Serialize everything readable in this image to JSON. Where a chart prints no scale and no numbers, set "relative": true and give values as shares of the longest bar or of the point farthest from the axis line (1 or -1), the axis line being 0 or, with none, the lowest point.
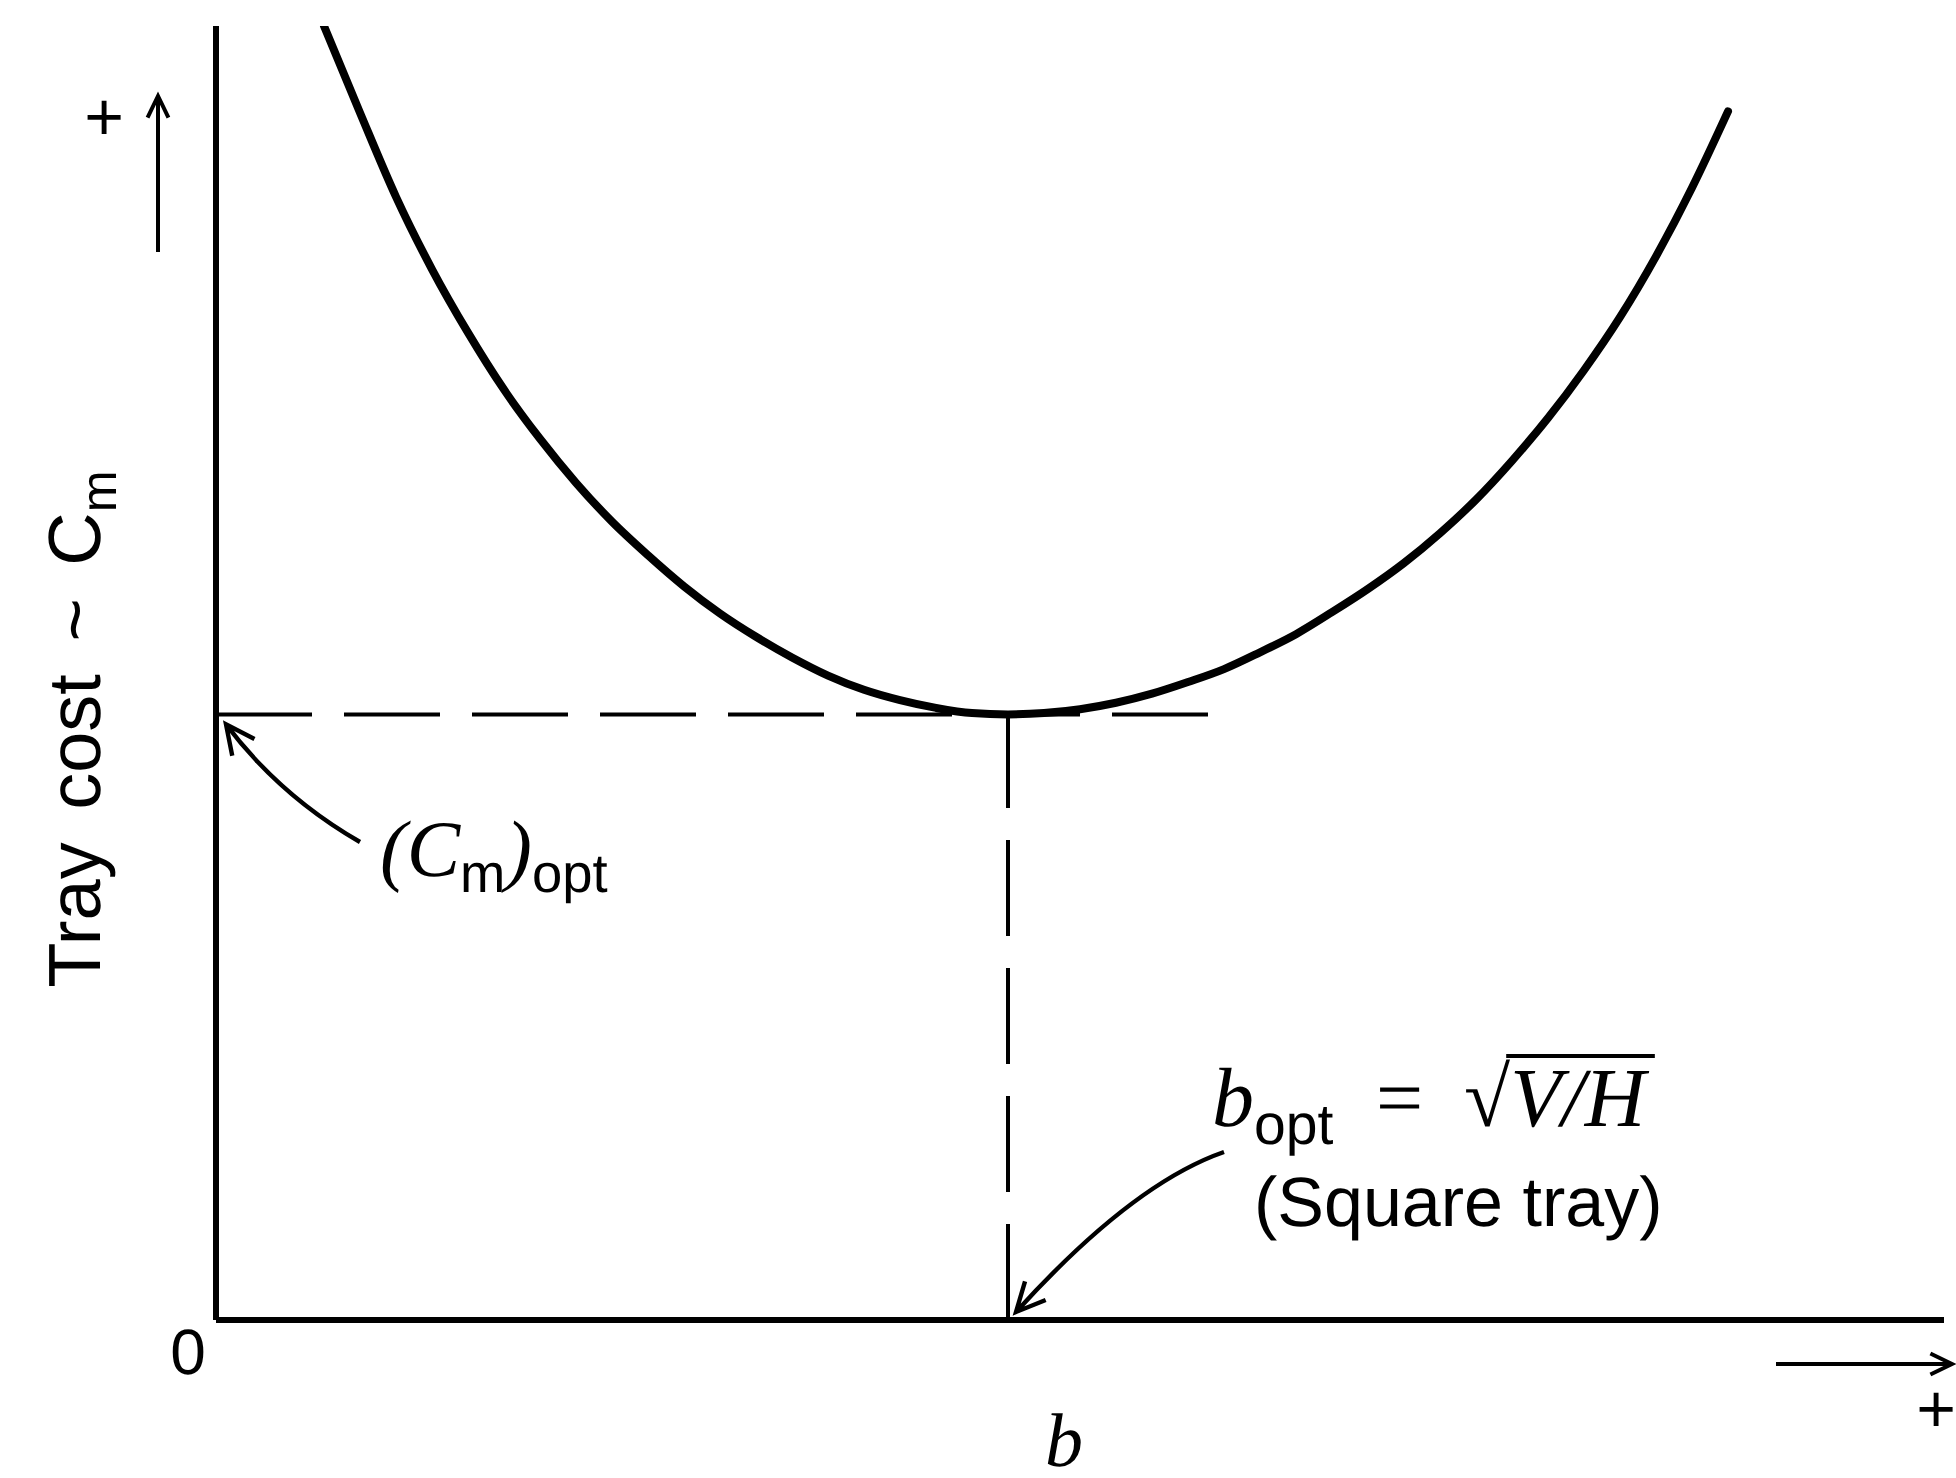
{
  "chart_data": {
    "type": "line",
    "relative": true,
    "xlabel": "b",
    "ylabel": "Tray cost ~ C$_{m}$",
    "categories": [
      null,
      null,
      null,
      null,
      null,
      null,
      null,
      null,
      null,
      null,
      null,
      null,
      null,
      null,
      null,
      null,
      null,
      null,
      null,
      null,
      null,
      null,
      null,
      null,
      null,
      null,
      null,
      null,
      null,
      null,
      null,
      null,
      null,
      null,
      null,
      null,
      null,
      null,
      null,
      null,
      null,
      null,
      null,
      null,
      null,
      null,
      null,
      null,
      null
    ],
    "series": [
      {
        "color": "#000000",
        "values": [
          null,
          null,
          null,
          1,
          0.933,
          0.868,
          0.812,
          0.763,
          0.719,
          0.681,
          0.647,
          0.617,
          0.591,
          0.567,
          0.546,
          0.528,
          0.512,
          0.498,
          0.487,
          0.479,
          0.473,
          0.469,
          0.468,
          0.469,
          0.472,
          0.477,
          0.484,
          0.493,
          0.503,
          0.516,
          0.53,
          0.547,
          0.565,
          0.585,
          0.608,
          0.634,
          0.664,
          0.697,
          0.734,
          0.775,
          0.822,
          0.875,
          0.934,
          null,
          null,
          null,
          null,
          null,
          null
        ]
      }
    ],
    "ref_lines": [
      {
        "axis": "y",
        "value": 0.468,
        "line_style": "dashed",
        "color": "#000000"
      }
    ],
    "annotations": [
      "+",
      {
        "text": "(C$_{m}$)$_{opt}$",
        "y": 0.468
      },
      "b$_{opt}$ = √V/H",
      "(Square tray)",
      "0",
      "+"
    ]
  }
}
